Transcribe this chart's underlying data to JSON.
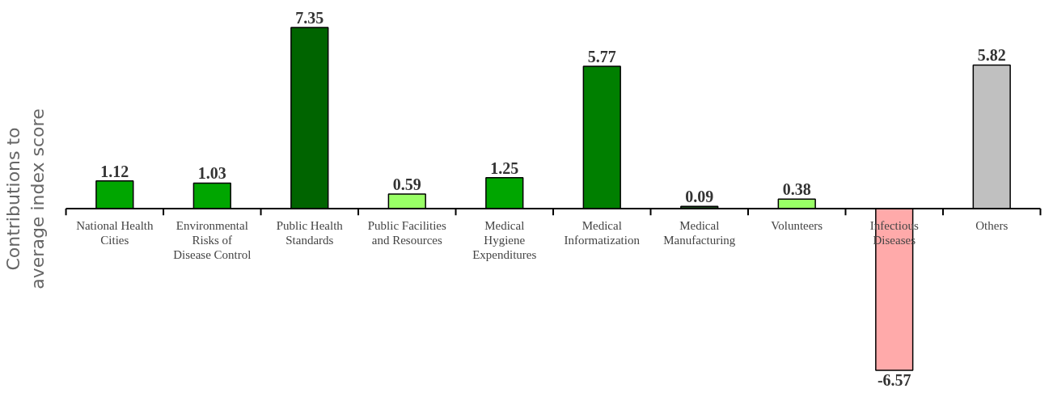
{
  "chart_data": {
    "type": "bar",
    "ylabel": "Contributions to\naverage index score",
    "categories": [
      "National Health\nCities",
      "Environmental\nRisks of\nDisease Control",
      "Public Health\nStandards",
      "Public Facilities\nand Resources",
      "Medical\nHygiene\nExpenditures",
      "Medical\nInformatization",
      "Medical\nManufacturing",
      "Volunteers",
      "Infectious\nDiseases",
      "Others"
    ],
    "values": [
      1.12,
      1.03,
      7.35,
      0.59,
      1.25,
      5.77,
      0.09,
      0.38,
      -6.57,
      5.82
    ],
    "colors": [
      "#00a600",
      "#00a600",
      "#006400",
      "#99ff66",
      "#00a600",
      "#007f00",
      "#1f4d1f",
      "#99ff66",
      "#ffaaaa",
      "#c0c0c0"
    ],
    "data_labels": true,
    "grid": false
  }
}
